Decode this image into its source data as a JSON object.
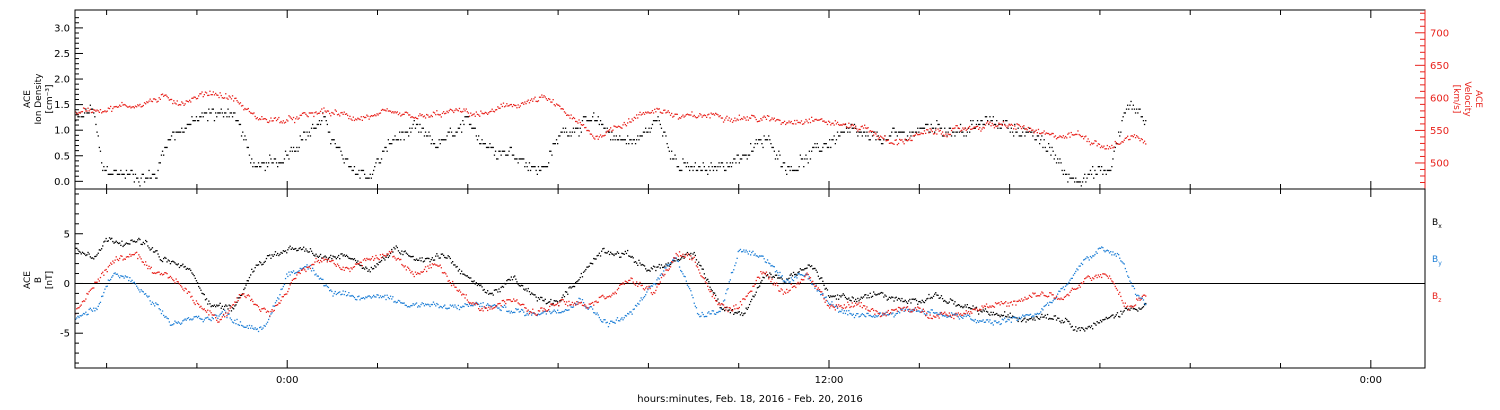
{
  "colors": {
    "black": "#000000",
    "red": "#e8221c",
    "blue": "#1f7fd6",
    "zero_line": "#000000"
  },
  "xaxis": {
    "label": "hours:minutes, Feb. 18, 2016 - Feb. 20, 2016",
    "range_hours": [
      -4.7,
      25.2
    ],
    "major_ticks": [
      {
        "hour": 0,
        "label": "0:00"
      },
      {
        "hour": 12,
        "label": "12:00"
      },
      {
        "hour": 24,
        "label": "0:00"
      }
    ],
    "minor_tick_step_hours": 2
  },
  "chart_data": [
    {
      "type": "scatter",
      "title": "",
      "xlabel": "hours:minutes, Feb. 18, 2016 - Feb. 20, 2016",
      "ylabel": {
        "line1": "ACE",
        "line2": "Ion Density",
        "line3": "[cm⁻³]"
      },
      "ylim": [
        -0.15,
        3.35
      ],
      "yticks": [
        0.0,
        0.5,
        1.0,
        1.5,
        2.0,
        2.5,
        3.0
      ],
      "ytick_labels": [
        "0.0",
        "0.5",
        "1.0",
        "1.5",
        "2.0",
        "2.5",
        "3.0"
      ],
      "y2label": {
        "line1": "ACE",
        "line2": "Velocity",
        "line3": "[km/s]"
      },
      "y2lim": [
        460,
        735
      ],
      "y2ticks": [
        500,
        550,
        600,
        650,
        700
      ],
      "y2tick_labels": [
        "500",
        "550",
        "600",
        "650",
        "700"
      ],
      "grid": false,
      "series": [
        {
          "axis": "left",
          "color": "black",
          "anchors": [
            [
              -4.7,
              1.2
            ],
            [
              -4.3,
              1.4
            ],
            [
              -4.1,
              0.2
            ],
            [
              -3.2,
              0.1
            ],
            [
              -2.9,
              0.15
            ],
            [
              -2.7,
              0.8
            ],
            [
              -2.3,
              1.1
            ],
            [
              -1.7,
              1.3
            ],
            [
              -1.2,
              1.4
            ],
            [
              -0.7,
              0.2
            ],
            [
              -0.2,
              0.4
            ],
            [
              0.3,
              0.9
            ],
            [
              0.8,
              1.2
            ],
            [
              1.3,
              0.3
            ],
            [
              1.8,
              0.1
            ],
            [
              2.3,
              0.8
            ],
            [
              2.8,
              1.0
            ],
            [
              3.3,
              0.7
            ],
            [
              4.0,
              1.1
            ],
            [
              4.5,
              0.7
            ],
            [
              5.0,
              0.6
            ],
            [
              5.6,
              0.2
            ],
            [
              6.1,
              1.0
            ],
            [
              6.7,
              1.2
            ],
            [
              7.2,
              0.9
            ],
            [
              7.7,
              0.8
            ],
            [
              8.2,
              1.2
            ],
            [
              8.7,
              0.3
            ],
            [
              9.3,
              0.2
            ],
            [
              10.0,
              0.5
            ],
            [
              10.6,
              0.8
            ],
            [
              11.1,
              0.3
            ],
            [
              11.6,
              0.5
            ],
            [
              12.3,
              1.0
            ],
            [
              12.9,
              0.8
            ],
            [
              13.6,
              0.9
            ],
            [
              14.3,
              1.1
            ],
            [
              15.0,
              1.0
            ],
            [
              15.6,
              1.2
            ],
            [
              16.3,
              1.0
            ],
            [
              16.9,
              0.6
            ],
            [
              17.3,
              0.1
            ],
            [
              18.2,
              0.2
            ],
            [
              18.6,
              1.5
            ],
            [
              18.9,
              1.4
            ],
            [
              19.0,
              1.1
            ]
          ],
          "noise": 0.35,
          "quantize": 0.075
        },
        {
          "axis": "right",
          "color": "red",
          "anchors": [
            [
              -4.7,
              580
            ],
            [
              -4.0,
              585
            ],
            [
              -3.4,
              590
            ],
            [
              -2.8,
              600
            ],
            [
              -2.3,
              595
            ],
            [
              -1.7,
              610
            ],
            [
              -1.2,
              600
            ],
            [
              -0.7,
              570
            ],
            [
              0.0,
              565
            ],
            [
              0.8,
              580
            ],
            [
              1.5,
              570
            ],
            [
              2.2,
              575
            ],
            [
              3.0,
              570
            ],
            [
              3.7,
              580
            ],
            [
              4.3,
              575
            ],
            [
              5.0,
              590
            ],
            [
              5.7,
              600
            ],
            [
              6.2,
              575
            ],
            [
              6.8,
              540
            ],
            [
              7.5,
              565
            ],
            [
              8.2,
              585
            ],
            [
              8.7,
              570
            ],
            [
              9.5,
              575
            ],
            [
              10.3,
              570
            ],
            [
              11.0,
              565
            ],
            [
              11.6,
              570
            ],
            [
              12.2,
              560
            ],
            [
              12.8,
              555
            ],
            [
              13.4,
              530
            ],
            [
              14.0,
              545
            ],
            [
              14.8,
              550
            ],
            [
              15.5,
              560
            ],
            [
              16.3,
              555
            ],
            [
              16.9,
              540
            ],
            [
              17.5,
              545
            ],
            [
              18.2,
              525
            ],
            [
              18.8,
              545
            ],
            [
              19.0,
              530
            ]
          ],
          "noise": 14
        }
      ]
    },
    {
      "type": "scatter",
      "title": "",
      "xlabel": "hours:minutes, Feb. 18, 2016 - Feb. 20, 2016",
      "ylabel": {
        "line1": "ACE",
        "line2": "B",
        "line3": "[nT]"
      },
      "ylim": [
        -8.5,
        9.5
      ],
      "yticks": [
        -5,
        0,
        5
      ],
      "ytick_labels": [
        "-5",
        "0",
        "5"
      ],
      "zero_line": true,
      "grid": false,
      "legend": {
        "placement": "right"
      },
      "series": [
        {
          "name": "Bx",
          "color": "black",
          "anchors": [
            [
              -4.7,
              3.5
            ],
            [
              -4.3,
              3.0
            ],
            [
              -4.0,
              4.5
            ],
            [
              -3.2,
              4.2
            ],
            [
              -2.8,
              2.5
            ],
            [
              -2.2,
              1.5
            ],
            [
              -1.7,
              -2.0
            ],
            [
              -1.2,
              -2.5
            ],
            [
              -0.7,
              2.0
            ],
            [
              -0.3,
              3.0
            ],
            [
              0.3,
              3.5
            ],
            [
              0.8,
              2.5
            ],
            [
              1.3,
              3.0
            ],
            [
              1.8,
              1.5
            ],
            [
              2.4,
              3.5
            ],
            [
              3.0,
              2.5
            ],
            [
              3.5,
              3.0
            ],
            [
              4.0,
              0.5
            ],
            [
              4.5,
              -1.0
            ],
            [
              5.0,
              0.5
            ],
            [
              5.5,
              -1.5
            ],
            [
              6.0,
              -2.0
            ],
            [
              6.5,
              1.0
            ],
            [
              7.0,
              3.5
            ],
            [
              7.5,
              3.0
            ],
            [
              8.0,
              1.5
            ],
            [
              8.5,
              2.0
            ],
            [
              9.0,
              3.0
            ],
            [
              9.4,
              -0.5
            ],
            [
              9.6,
              -2.5
            ],
            [
              10.1,
              -3.0
            ],
            [
              10.6,
              1.0
            ],
            [
              11.0,
              0.5
            ],
            [
              11.6,
              2.0
            ],
            [
              12.0,
              -1.0
            ],
            [
              12.5,
              -1.5
            ],
            [
              13.1,
              -1.0
            ],
            [
              13.7,
              -2.0
            ],
            [
              14.3,
              -1.0
            ],
            [
              15.0,
              -2.5
            ],
            [
              15.6,
              -3.0
            ],
            [
              16.2,
              -3.5
            ],
            [
              16.8,
              -3.0
            ],
            [
              17.2,
              -3.5
            ],
            [
              17.6,
              -4.5
            ],
            [
              18.2,
              -3.5
            ],
            [
              18.6,
              -2.5
            ],
            [
              19.0,
              -2.0
            ]
          ],
          "noise": 0.9
        },
        {
          "name": "By",
          "color": "blue",
          "anchors": [
            [
              -4.7,
              -3.5
            ],
            [
              -4.2,
              -2.5
            ],
            [
              -3.9,
              1.0
            ],
            [
              -3.5,
              0.5
            ],
            [
              -3.0,
              -2.0
            ],
            [
              -2.6,
              -4.0
            ],
            [
              -2.0,
              -3.5
            ],
            [
              -1.4,
              -3.0
            ],
            [
              -1.0,
              -4.0
            ],
            [
              -0.5,
              -4.5
            ],
            [
              0.0,
              1.0
            ],
            [
              0.5,
              2.0
            ],
            [
              1.0,
              -1.0
            ],
            [
              1.6,
              -1.5
            ],
            [
              2.1,
              -1.0
            ],
            [
              2.6,
              -2.0
            ],
            [
              3.1,
              -2.0
            ],
            [
              3.6,
              -2.5
            ],
            [
              4.2,
              -2.0
            ],
            [
              4.8,
              -2.5
            ],
            [
              5.4,
              -3.0
            ],
            [
              6.0,
              -2.5
            ],
            [
              6.5,
              -1.5
            ],
            [
              7.1,
              -4.0
            ],
            [
              7.6,
              -3.0
            ],
            [
              8.2,
              0.5
            ],
            [
              8.6,
              3.0
            ],
            [
              9.1,
              -3.0
            ],
            [
              9.6,
              -2.5
            ],
            [
              10.0,
              3.5
            ],
            [
              10.5,
              3.0
            ],
            [
              11.0,
              0.0
            ],
            [
              11.5,
              1.0
            ],
            [
              12.0,
              -2.0
            ],
            [
              12.6,
              -3.5
            ],
            [
              13.2,
              -3.0
            ],
            [
              13.8,
              -2.5
            ],
            [
              14.5,
              -3.0
            ],
            [
              15.1,
              -3.5
            ],
            [
              15.6,
              -4.0
            ],
            [
              16.1,
              -3.5
            ],
            [
              16.6,
              -3.0
            ],
            [
              17.1,
              -1.0
            ],
            [
              17.6,
              2.0
            ],
            [
              18.0,
              3.5
            ],
            [
              18.4,
              3.0
            ],
            [
              18.8,
              -1.0
            ],
            [
              19.0,
              -2.0
            ]
          ],
          "noise": 0.9
        },
        {
          "name": "Bz",
          "color": "red",
          "anchors": [
            [
              -4.7,
              -3.0
            ],
            [
              -4.2,
              0.5
            ],
            [
              -3.8,
              2.5
            ],
            [
              -3.4,
              3.0
            ],
            [
              -3.0,
              1.0
            ],
            [
              -2.5,
              0.5
            ],
            [
              -2.0,
              -2.0
            ],
            [
              -1.5,
              -3.5
            ],
            [
              -1.0,
              -1.0
            ],
            [
              -0.4,
              -3.0
            ],
            [
              0.2,
              1.0
            ],
            [
              0.8,
              2.5
            ],
            [
              1.3,
              1.5
            ],
            [
              1.8,
              2.5
            ],
            [
              2.3,
              3.0
            ],
            [
              2.8,
              1.0
            ],
            [
              3.3,
              2.0
            ],
            [
              3.8,
              -1.0
            ],
            [
              4.3,
              -2.5
            ],
            [
              4.9,
              -1.5
            ],
            [
              5.5,
              -3.0
            ],
            [
              6.1,
              -1.5
            ],
            [
              6.6,
              -2.0
            ],
            [
              7.1,
              -1.0
            ],
            [
              7.6,
              0.5
            ],
            [
              8.1,
              -1.0
            ],
            [
              8.6,
              3.0
            ],
            [
              9.0,
              2.5
            ],
            [
              9.5,
              -2.0
            ],
            [
              10.0,
              -2.5
            ],
            [
              10.5,
              1.5
            ],
            [
              11.0,
              -1.0
            ],
            [
              11.5,
              1.0
            ],
            [
              12.0,
              -2.5
            ],
            [
              12.6,
              -2.0
            ],
            [
              13.2,
              -3.0
            ],
            [
              13.7,
              -2.5
            ],
            [
              14.3,
              -3.0
            ],
            [
              14.9,
              -3.0
            ],
            [
              15.5,
              -2.0
            ],
            [
              16.1,
              -2.0
            ],
            [
              16.7,
              -1.0
            ],
            [
              17.2,
              -1.5
            ],
            [
              17.7,
              0.5
            ],
            [
              18.2,
              1.0
            ],
            [
              18.6,
              -2.5
            ],
            [
              19.0,
              -1.0
            ]
          ],
          "noise": 0.9
        }
      ]
    }
  ],
  "legend": {
    "bx": {
      "main": "B",
      "sub": "x"
    },
    "by": {
      "main": "B",
      "sub": "y"
    },
    "bz": {
      "main": "B",
      "sub": "z"
    }
  }
}
